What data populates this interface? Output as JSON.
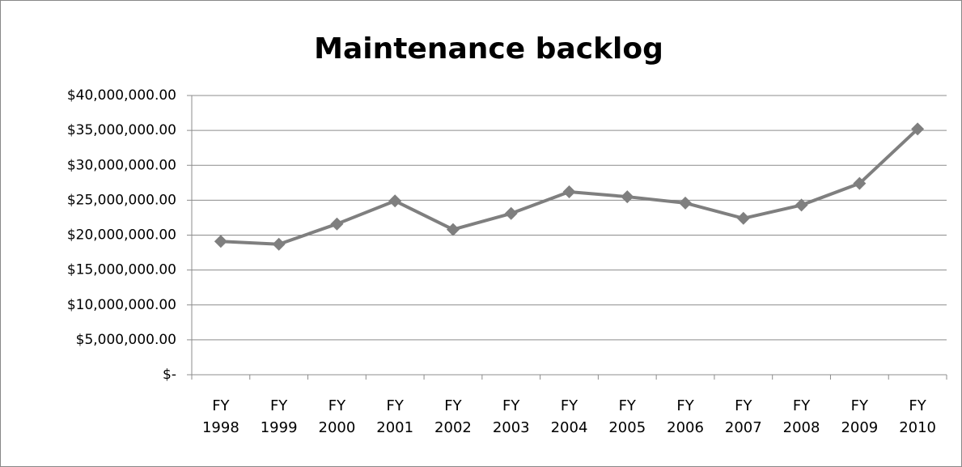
{
  "chart_data": {
    "type": "line",
    "title": "Maintenance backlog",
    "categories": [
      "FY 1998",
      "FY 1999",
      "FY 2000",
      "FY 2001",
      "FY 2002",
      "FY 2003",
      "FY 2004",
      "FY 2005",
      "FY 2006",
      "FY 2007",
      "FY 2008",
      "FY 2009",
      "FY 2010"
    ],
    "series": [
      {
        "name": "Maintenance backlog",
        "color": "#7f7f7f",
        "values": [
          19100000,
          18700000,
          21600000,
          24900000,
          20800000,
          23100000,
          26200000,
          25500000,
          24600000,
          22400000,
          24300000,
          27400000,
          35200000
        ]
      }
    ],
    "ylim": [
      0,
      40000000
    ],
    "yticks": [
      {
        "value": 0,
        "label": "$-"
      },
      {
        "value": 5000000,
        "label": "$5,000,000.00"
      },
      {
        "value": 10000000,
        "label": "$10,000,000.00"
      },
      {
        "value": 15000000,
        "label": "$15,000,000.00"
      },
      {
        "value": 20000000,
        "label": "$20,000,000.00"
      },
      {
        "value": 25000000,
        "label": "$25,000,000.00"
      },
      {
        "value": 30000000,
        "label": "$30,000,000.00"
      },
      {
        "value": 35000000,
        "label": "$35,000,000.00"
      },
      {
        "value": 40000000,
        "label": "$40,000,000.00"
      }
    ],
    "grid": true
  }
}
